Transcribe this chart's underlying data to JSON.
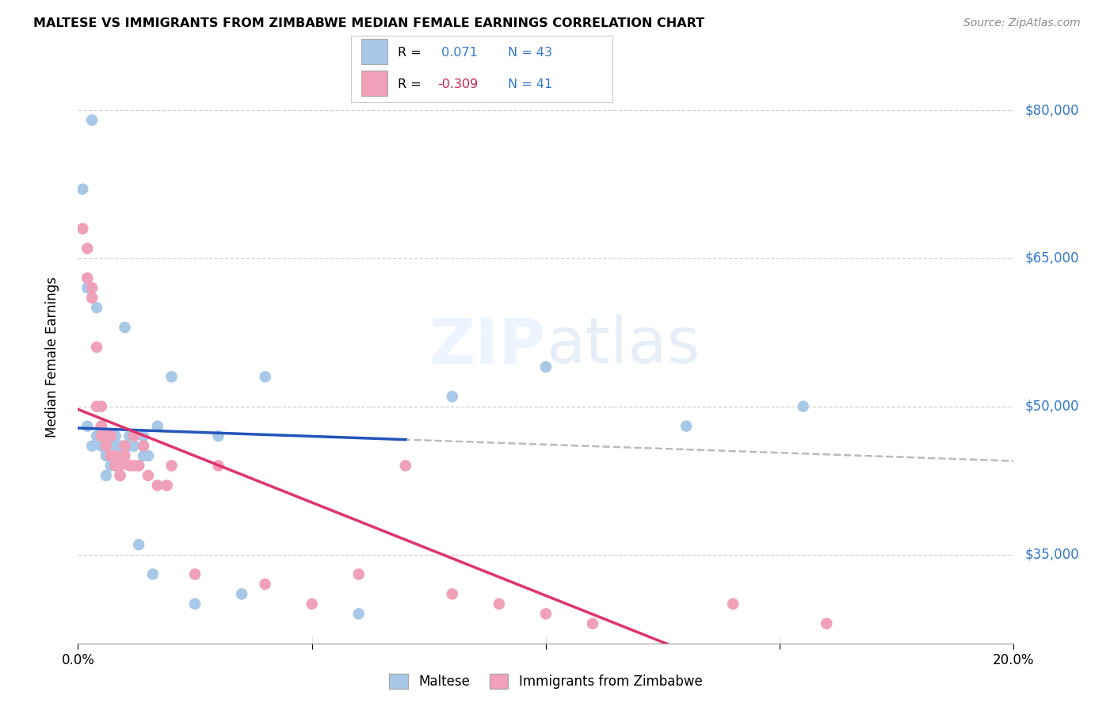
{
  "title": "MALTESE VS IMMIGRANTS FROM ZIMBABWE MEDIAN FEMALE EARNINGS CORRELATION CHART",
  "source": "Source: ZipAtlas.com",
  "ylabel": "Median Female Earnings",
  "yticks": [
    35000,
    50000,
    65000,
    80000
  ],
  "ytick_labels": [
    "$35,000",
    "$50,000",
    "$65,000",
    "$80,000"
  ],
  "xmin": 0.0,
  "xmax": 0.2,
  "ymin": 26000,
  "ymax": 84000,
  "legend_maltese_R": "0.071",
  "legend_maltese_N": "43",
  "legend_zimbabwe_R": "-0.309",
  "legend_zimbabwe_N": "41",
  "color_maltese": "#a8c8e8",
  "color_zimbabwe": "#f0a0b8",
  "trendline_maltese_color": "#2255bb",
  "trendline_zimbabwe_color": "#e03370",
  "trendline_dashed_color": "#aaaaaa",
  "maltese_x": [
    0.001,
    0.002,
    0.002,
    0.003,
    0.003,
    0.004,
    0.004,
    0.005,
    0.005,
    0.005,
    0.006,
    0.006,
    0.006,
    0.007,
    0.007,
    0.007,
    0.008,
    0.008,
    0.008,
    0.008,
    0.009,
    0.009,
    0.01,
    0.01,
    0.011,
    0.011,
    0.012,
    0.013,
    0.014,
    0.014,
    0.015,
    0.016,
    0.017,
    0.02,
    0.025,
    0.03,
    0.035,
    0.04,
    0.06,
    0.08,
    0.1,
    0.13,
    0.155
  ],
  "maltese_y": [
    72000,
    62000,
    48000,
    79000,
    46000,
    60000,
    47000,
    48000,
    47000,
    46000,
    46000,
    45000,
    43000,
    47000,
    46000,
    44000,
    47000,
    46000,
    45000,
    44000,
    46000,
    43000,
    46000,
    58000,
    47000,
    46000,
    46000,
    36000,
    45000,
    47000,
    45000,
    33000,
    48000,
    53000,
    30000,
    47000,
    31000,
    53000,
    29000,
    51000,
    54000,
    48000,
    50000
  ],
  "zimbabwe_x": [
    0.001,
    0.002,
    0.002,
    0.003,
    0.003,
    0.004,
    0.004,
    0.005,
    0.005,
    0.005,
    0.006,
    0.006,
    0.007,
    0.007,
    0.008,
    0.008,
    0.009,
    0.009,
    0.01,
    0.01,
    0.011,
    0.012,
    0.012,
    0.013,
    0.014,
    0.015,
    0.017,
    0.019,
    0.02,
    0.025,
    0.03,
    0.04,
    0.05,
    0.06,
    0.07,
    0.08,
    0.09,
    0.1,
    0.11,
    0.14,
    0.16
  ],
  "zimbabwe_y": [
    68000,
    66000,
    63000,
    62000,
    61000,
    56000,
    50000,
    50000,
    48000,
    47000,
    47000,
    46000,
    47000,
    45000,
    45000,
    44000,
    44000,
    43000,
    45000,
    46000,
    44000,
    47000,
    44000,
    44000,
    46000,
    43000,
    42000,
    42000,
    44000,
    33000,
    44000,
    32000,
    30000,
    33000,
    44000,
    31000,
    30000,
    29000,
    28000,
    30000,
    28000
  ]
}
